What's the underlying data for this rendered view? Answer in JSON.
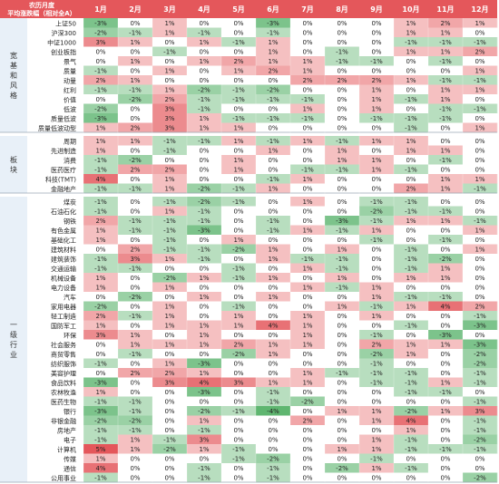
{
  "chart_data": {
    "type": "heatmap",
    "title_lines": [
      "农历月度",
      "平均涨跌幅（相对全A）"
    ],
    "months": [
      "1月",
      "2月",
      "3月",
      "4月",
      "5月",
      "6月",
      "7月",
      "8月",
      "9月",
      "10月",
      "11月",
      "12月"
    ],
    "groups": [
      {
        "name": "宽基和风格",
        "rows": [
          {
            "label": "上证50",
            "values": [
              -3,
              0,
              1,
              0,
              0,
              -3,
              0,
              0,
              0,
              1,
              2,
              1
            ]
          },
          {
            "label": "沪深300",
            "values": [
              -2,
              -1,
              1,
              -1,
              0,
              -1,
              0,
              0,
              0,
              1,
              1,
              0
            ]
          },
          {
            "label": "中证1000",
            "values": [
              3,
              1,
              0,
              1,
              -1,
              1,
              0,
              0,
              0,
              -1,
              -1,
              -1
            ]
          },
          {
            "label": "创业板指",
            "values": [
              0,
              0,
              -1,
              0,
              0,
              1,
              0,
              -1,
              0,
              1,
              1,
              2
            ]
          },
          {
            "label": "景气",
            "values": [
              0,
              1,
              0,
              1,
              2,
              1,
              1,
              -1,
              -1,
              0,
              -1,
              0
            ]
          },
          {
            "label": "质量",
            "values": [
              -1,
              0,
              1,
              0,
              1,
              2,
              1,
              0,
              0,
              0,
              0,
              1
            ]
          },
          {
            "label": "动量",
            "values": [
              2,
              1,
              0,
              0,
              0,
              0,
              2,
              2,
              2,
              1,
              -1,
              -1
            ]
          },
          {
            "label": "红利",
            "values": [
              -1,
              -1,
              1,
              -2,
              -1,
              -2,
              0,
              0,
              1,
              0,
              1,
              1
            ]
          },
          {
            "label": "价值",
            "values": [
              0,
              -2,
              2,
              -1,
              -1,
              -1,
              -1,
              0,
              1,
              -1,
              1,
              0
            ]
          },
          {
            "label": "低波",
            "values": [
              -2,
              0,
              3,
              -1,
              0,
              0,
              1,
              0,
              1,
              0,
              -1,
              -1
            ]
          },
          {
            "label": "质量低波",
            "values": [
              -3,
              0,
              3,
              1,
              -1,
              -1,
              -1,
              0,
              -1,
              -1,
              -1,
              0
            ]
          },
          {
            "label": "质量低波动型",
            "values": [
              1,
              2,
              3,
              1,
              1,
              0,
              0,
              0,
              0,
              -1,
              0,
              1
            ]
          }
        ]
      },
      {
        "name": "板块",
        "rows": [
          {
            "label": "周期",
            "values": [
              1,
              1,
              -1,
              -1,
              1,
              -1,
              1,
              -1,
              1,
              1,
              0,
              0
            ]
          },
          {
            "label": "先进制造",
            "values": [
              1,
              0,
              -1,
              0,
              0,
              1,
              0,
              1,
              0,
              1,
              1,
              0
            ]
          },
          {
            "label": "消费",
            "values": [
              -1,
              -2,
              0,
              0,
              1,
              0,
              0,
              1,
              1,
              0,
              -1,
              0
            ]
          },
          {
            "label": "医药医疗",
            "values": [
              -1,
              2,
              2,
              0,
              1,
              0,
              -1,
              -1,
              1,
              -1,
              0,
              0
            ]
          },
          {
            "label": "科技(TMT)",
            "values": [
              4,
              0,
              1,
              0,
              0,
              -1,
              1,
              0,
              0,
              0,
              1,
              1
            ]
          },
          {
            "label": "金融地产",
            "values": [
              -1,
              -1,
              1,
              -2,
              -1,
              1,
              0,
              0,
              0,
              2,
              1,
              -1
            ]
          }
        ]
      },
      {
        "name": "一级行业",
        "rows": [
          {
            "label": "煤炭",
            "values": [
              -1,
              0,
              -1,
              -2,
              -1,
              0,
              1,
              0,
              -1,
              -1,
              0,
              0
            ]
          },
          {
            "label": "石油石化",
            "values": [
              -1,
              0,
              1,
              -1,
              0,
              0,
              0,
              0,
              -2,
              -1,
              -1,
              0
            ]
          },
          {
            "label": "钢铁",
            "values": [
              2,
              -1,
              -1,
              -1,
              0,
              -1,
              0,
              -3,
              -1,
              1,
              1,
              -1
            ]
          },
          {
            "label": "有色金属",
            "values": [
              1,
              -1,
              -1,
              -3,
              0,
              -1,
              1,
              -1,
              1,
              0,
              0,
              1
            ]
          },
          {
            "label": "基础化工",
            "values": [
              1,
              0,
              -1,
              0,
              1,
              0,
              0,
              0,
              -1,
              0,
              -1,
              0
            ]
          },
          {
            "label": "建筑材料",
            "values": [
              0,
              2,
              -1,
              -1,
              -2,
              1,
              0,
              1,
              0,
              -1,
              0,
              1
            ]
          },
          {
            "label": "建筑装饰",
            "values": [
              -1,
              3,
              1,
              -1,
              0,
              1,
              -1,
              -1,
              0,
              -1,
              -2,
              0
            ]
          },
          {
            "label": "交通运输",
            "values": [
              -1,
              -1,
              0,
              0,
              -1,
              0,
              1,
              -1,
              0,
              -1,
              1,
              0
            ]
          },
          {
            "label": "机械设备",
            "values": [
              1,
              0,
              -2,
              1,
              -1,
              1,
              0,
              1,
              0,
              1,
              1,
              0
            ]
          },
          {
            "label": "电力设备",
            "values": [
              1,
              0,
              1,
              0,
              0,
              0,
              1,
              -1,
              1,
              0,
              0,
              0
            ]
          },
          {
            "label": "汽车",
            "values": [
              0,
              -2,
              0,
              1,
              0,
              1,
              0,
              0,
              1,
              -1,
              -1,
              0
            ]
          },
          {
            "label": "家用电器",
            "values": [
              -2,
              0,
              1,
              0,
              -1,
              0,
              0,
              1,
              -1,
              1,
              4,
              2
            ]
          },
          {
            "label": "轻工制造",
            "values": [
              2,
              -1,
              1,
              0,
              1,
              0,
              1,
              0,
              1,
              0,
              0,
              -1
            ]
          },
          {
            "label": "国防军工",
            "values": [
              1,
              0,
              1,
              1,
              1,
              4,
              1,
              0,
              0,
              -1,
              0,
              -3
            ]
          },
          {
            "label": "环保",
            "values": [
              3,
              1,
              0,
              1,
              0,
              0,
              1,
              0,
              -1,
              0,
              -3,
              0
            ]
          },
          {
            "label": "社会服务",
            "values": [
              0,
              1,
              1,
              1,
              2,
              1,
              1,
              0,
              2,
              1,
              1,
              -3
            ]
          },
          {
            "label": "商贸零售",
            "values": [
              0,
              -1,
              0,
              0,
              -2,
              1,
              0,
              0,
              -2,
              1,
              0,
              -2
            ]
          },
          {
            "label": "纺织服饰",
            "values": [
              -1,
              0,
              1,
              -3,
              0,
              0,
              0,
              0,
              -1,
              0,
              0,
              -2
            ]
          },
          {
            "label": "美容护理",
            "values": [
              0,
              2,
              2,
              1,
              0,
              0,
              1,
              -1,
              -1,
              -1,
              0,
              -1
            ]
          },
          {
            "label": "食品饮料",
            "values": [
              -3,
              0,
              3,
              4,
              3,
              1,
              1,
              0,
              -1,
              -1,
              1,
              -1
            ]
          },
          {
            "label": "农林牧渔",
            "values": [
              1,
              0,
              0,
              -3,
              0,
              -1,
              0,
              0,
              0,
              -1,
              -1,
              0
            ]
          },
          {
            "label": "医药生物",
            "values": [
              -1,
              -1,
              0,
              0,
              0,
              -1,
              -2,
              0,
              0,
              0,
              0,
              -1
            ]
          },
          {
            "label": "银行",
            "values": [
              -3,
              -1,
              0,
              -2,
              -1,
              -4,
              0,
              1,
              1,
              -2,
              1,
              3
            ]
          },
          {
            "label": "非银金融",
            "values": [
              -2,
              -2,
              0,
              1,
              0,
              0,
              2,
              0,
              1,
              4,
              0,
              -1
            ]
          },
          {
            "label": "房地产",
            "values": [
              -1,
              -1,
              0,
              -1,
              0,
              0,
              0,
              0,
              0,
              1,
              0,
              -1
            ]
          },
          {
            "label": "电子",
            "values": [
              -1,
              1,
              -1,
              3,
              0,
              0,
              0,
              0,
              1,
              -1,
              0,
              -2
            ]
          },
          {
            "label": "计算机",
            "values": [
              5,
              1,
              -2,
              1,
              -1,
              0,
              0,
              1,
              1,
              -1,
              -1,
              -1
            ]
          },
          {
            "label": "传媒",
            "values": [
              1,
              0,
              0,
              0,
              -1,
              -2,
              0,
              0,
              -1,
              0,
              0,
              0
            ]
          },
          {
            "label": "通信",
            "values": [
              4,
              0,
              0,
              -1,
              0,
              -1,
              0,
              -2,
              1,
              -1,
              0,
              0
            ]
          },
          {
            "label": "公用事业",
            "values": [
              -1,
              0,
              0,
              -1,
              0,
              -1,
              0,
              0,
              0,
              0,
              0,
              -2
            ]
          }
        ]
      }
    ],
    "value_suffix": "%",
    "color_scale": {
      "negative": "#41a856",
      "zero": "#ffffff",
      "positive": "#e4575b",
      "abs_max": 5
    },
    "header_bg": "#e4575b",
    "header_text_color": "#ffffff",
    "group_label_bg": "#e8f0f8"
  }
}
